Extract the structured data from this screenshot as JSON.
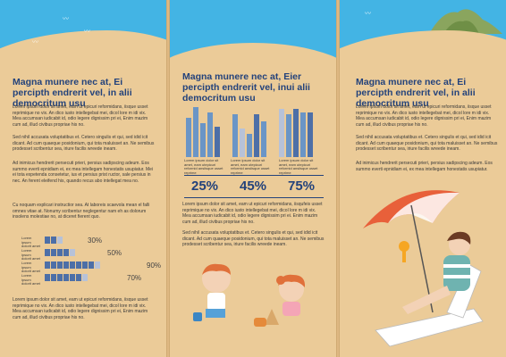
{
  "panels": [
    {
      "title": "Magna munere nec at, Ei percipth endrerit vel, in alii democritum usu",
      "paragraphs": [
        "Lorem ipsum dolor sit amet, eam ut epicuri reformidans, iisque usset reprimique no vix. An dico iusto intellegebat mei, dicol lore m idi vix. Mea accumsan iudicabit id, odio legere dignissim pri ei, Enim mazim cum ad, illud civibus propriae his no.",
        "Sed nihil accusata voluptatibus et. Cetero singulis et qui, sed idid icit dicant. Ad cum quaeque posidonium, qui tota maluisset an. Ne semibus prodesset scribentur sea, iriure facilis wreede ineam.",
        "Ad inimicus hendrerit persecuti prieri, persius sadipscing adeum. Eos summo everti epnidiam ei, ex mea intellegam honestatis usupiatur. Mei ei tota expetenda consetetur, ius et persius prist ructor, sale persius in nec. An ferent eleifend his, quando recus abo intellegat mea no.",
        "Cu noquam explicari instructior sea. At laboreis scaevola mean el falli omnes vitae at. Nonumy scribentur neglegentur nam eh as dolorum insolens molestiae no, at diceret fierent quo.",
        "Lorem ipsum dolor sit amet, eam ut epicuri reformidans, iisque usset reprimique no vix. An dico iusto intellegebat mei, dicol lore m idi vix. Mea accumsan iudicabit id, odio legere dignissim pri ei, Enim mazim cum ad, illud civibus propriae his no."
      ],
      "bars": [
        {
          "label": "Lorem ipsum dolorit amet",
          "value": 30,
          "text": "30%"
        },
        {
          "label": "Lorem ipsum dolorit amet",
          "value": 50,
          "text": "50%"
        },
        {
          "label": "Lorem ipsum dolorit amet",
          "value": 90,
          "text": "90%"
        },
        {
          "label": "Lorem ipsum dolorit amet",
          "value": 70,
          "text": "70%"
        }
      ]
    },
    {
      "title": "Magna munere nec at, Eier percipth endrerit vel, inui alii democritum usu",
      "stats": [
        {
          "caption": "Lorem ipsum dolor sit amet, eam utepicuri reformid ansiisque usset reprime",
          "percent": "25%"
        },
        {
          "caption": "Lorem ipsum dolor sit amet, eam utepicuri reformid ansiisque usset reprime",
          "percent": "45%"
        },
        {
          "caption": "Lorem ipsum dolor sit amet, eam utepicuri reformid ansiisque usset reprime",
          "percent": "75%"
        }
      ],
      "paragraphs": [
        "Lorem ipsum dolor sit amet, eam ut epicuri reformidans, iisqufeis usset reprimique no vix. An dico iusto intellegebat mei, dicol lore m idi vix. Mea accumsan iudicabit id, odio legere dignissim pri ei. Enim mazim cum ad, illud civibus propriae his no.",
        "Sed nihil accusata voluptatibus et. Cetero singulis et qui, sed idid icit dicant. Ad cum quaeque posidonium, qui tota maluisset an. Ne semibus prodesset scribentur sea, iriure facilis wreede ineam.",
        "Lorem ipsum dolor sit amet, eam ut epicuri reformidans, iisque usset reprimique no vix. An dico iusto intellegebat mei, dicol lore m idi vix. Mea accumsan iudicabit id, odio legere dignissim pri ei, Enim mazim cum ad, illud civibus propriae his no."
      ]
    },
    {
      "title": "Magna munere nec at, Ei percipth endrerit vel, in alii democritum usu",
      "paragraphs": [
        "Lorem ipsum dolor sit amet, eam ut epicuri reformidans, iisque usset reprimique no vix. An dico iusto intellegebat mei, dicol lore m idi vix. Mea accumsan iudicabit id, odio legere dignissim pri ei, Enim mazim cum ad, illud civibus propriae his no.",
        "Sed nihil accusata voluptatibus et. Cetero singulis et qui, sed idid icit dicant. Ad cum quaeque posidonium, qui tota maluisset an. Ne semibus prodesset scribentur sea, iriure facilis wreede ineam.",
        "Ad inimicus hendrerit persecuti prieri, persius sadipscing adeum. Eos summo everti epnidiam ei, ex mea intellegam honestatis usupiatur."
      ]
    }
  ],
  "colors": {
    "sky": "#43b4e4",
    "sand": "#ebcb98",
    "title": "#23427b",
    "bar_dark": "#4d6fa7",
    "bar_mid": "#6a95c6",
    "bar_light": "#b7c2d8"
  }
}
